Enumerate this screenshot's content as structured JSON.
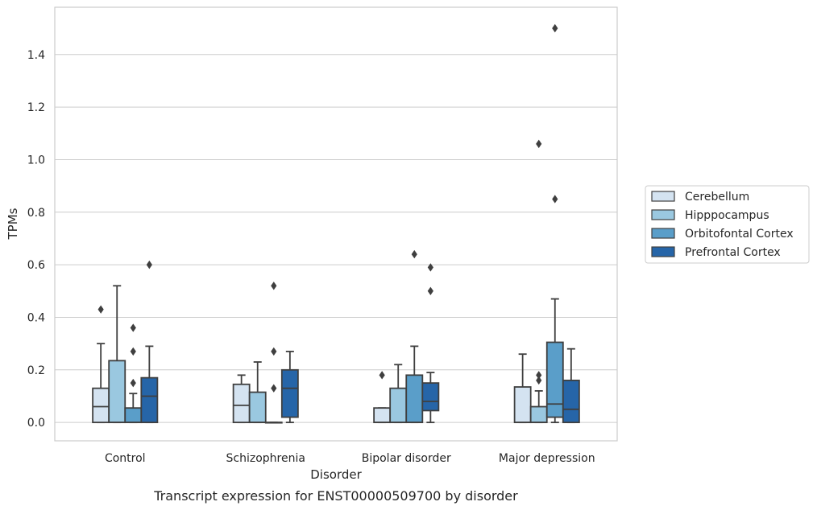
{
  "chart_data": {
    "type": "box",
    "title": "",
    "caption": "Transcript expression for ENST00000509700 by disorder",
    "xlabel": "Disorder",
    "ylabel": "TPMs",
    "ylim": [
      -0.07,
      1.58
    ],
    "yticks": [
      "0.0",
      "0.2",
      "0.4",
      "0.6",
      "0.8",
      "1.0",
      "1.2",
      "1.4"
    ],
    "grid": "horizontal",
    "legend_position": "right",
    "categories": [
      "Control",
      "Schizophrenia",
      "Bipolar disorder",
      "Major depression"
    ],
    "series": [
      {
        "name": "Cerebellum",
        "color": "#d4e3f1",
        "boxes": [
          {
            "whisker_low": 0.0,
            "q1": 0.0,
            "median": 0.06,
            "q3": 0.13,
            "whisker_high": 0.3,
            "outliers": [
              0.43
            ]
          },
          {
            "whisker_low": 0.0,
            "q1": 0.0,
            "median": 0.065,
            "q3": 0.145,
            "whisker_high": 0.18,
            "outliers": []
          },
          {
            "whisker_low": 0.0,
            "q1": 0.0,
            "median": 0.0,
            "q3": 0.055,
            "whisker_high": 0.055,
            "outliers": [
              0.18
            ]
          },
          {
            "whisker_low": 0.0,
            "q1": 0.0,
            "median": 0.0,
            "q3": 0.135,
            "whisker_high": 0.26,
            "outliers": []
          }
        ]
      },
      {
        "name": "Hipppocampus",
        "color": "#9ac8e0",
        "boxes": [
          {
            "whisker_low": 0.0,
            "q1": 0.0,
            "median": 0.0,
            "q3": 0.235,
            "whisker_high": 0.52,
            "outliers": []
          },
          {
            "whisker_low": 0.0,
            "q1": 0.0,
            "median": 0.0,
            "q3": 0.115,
            "whisker_high": 0.23,
            "outliers": []
          },
          {
            "whisker_low": 0.0,
            "q1": 0.0,
            "median": 0.0,
            "q3": 0.13,
            "whisker_high": 0.22,
            "outliers": []
          },
          {
            "whisker_low": 0.0,
            "q1": 0.0,
            "median": 0.0,
            "q3": 0.06,
            "whisker_high": 0.12,
            "outliers": [
              0.16,
              0.18,
              1.06
            ]
          }
        ]
      },
      {
        "name": "Orbitofontal Cortex",
        "color": "#5a9ec9",
        "boxes": [
          {
            "whisker_low": 0.0,
            "q1": 0.0,
            "median": 0.0,
            "q3": 0.055,
            "whisker_high": 0.11,
            "outliers": [
              0.15,
              0.27,
              0.36
            ]
          },
          {
            "whisker_low": 0.0,
            "q1": 0.0,
            "median": 0.0,
            "q3": 0.0,
            "whisker_high": 0.0,
            "outliers": [
              0.13,
              0.27,
              0.52
            ]
          },
          {
            "whisker_low": 0.0,
            "q1": 0.0,
            "median": 0.0,
            "q3": 0.18,
            "whisker_high": 0.29,
            "outliers": [
              0.64
            ]
          },
          {
            "whisker_low": 0.0,
            "q1": 0.02,
            "median": 0.07,
            "q3": 0.305,
            "whisker_high": 0.47,
            "outliers": [
              0.85,
              1.5
            ]
          }
        ]
      },
      {
        "name": "Prefrontal Cortex",
        "color": "#2665a8",
        "boxes": [
          {
            "whisker_low": 0.0,
            "q1": 0.0,
            "median": 0.1,
            "q3": 0.17,
            "whisker_high": 0.29,
            "outliers": [
              0.6
            ]
          },
          {
            "whisker_low": 0.0,
            "q1": 0.02,
            "median": 0.13,
            "q3": 0.2,
            "whisker_high": 0.27,
            "outliers": []
          },
          {
            "whisker_low": 0.0,
            "q1": 0.045,
            "median": 0.08,
            "q3": 0.15,
            "whisker_high": 0.19,
            "outliers": [
              0.5,
              0.59
            ]
          },
          {
            "whisker_low": 0.0,
            "q1": 0.0,
            "median": 0.05,
            "q3": 0.16,
            "whisker_high": 0.28,
            "outliers": []
          }
        ]
      }
    ]
  },
  "colors": {
    "grid": "#cccccc",
    "axis_frame": "#cccccc",
    "box_edge": "#3f3f3f",
    "text": "#262626"
  }
}
